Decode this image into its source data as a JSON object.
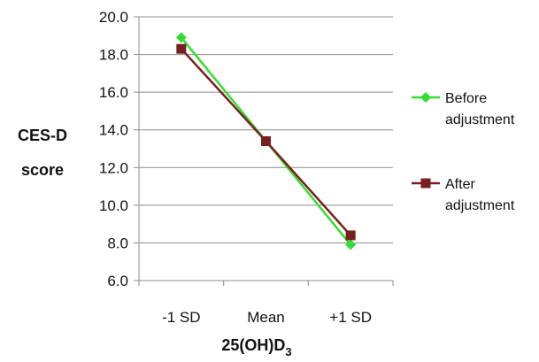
{
  "chart_data": {
    "type": "line",
    "categories": [
      "-1 SD",
      "Mean",
      "+1 SD"
    ],
    "series": [
      {
        "name": "Before adjustment",
        "legend_lines": [
          "Before",
          "adjustment"
        ],
        "values": [
          18.9,
          13.4,
          7.9
        ],
        "color": "#33dd33",
        "marker": "diamond"
      },
      {
        "name": "After adjustment",
        "legend_lines": [
          "After",
          "adjustment"
        ],
        "values": [
          18.3,
          13.4,
          8.4
        ],
        "color": "#7a1f1f",
        "marker": "square"
      }
    ],
    "xlabel": "25(OH)D",
    "xlabel_subscript": "3",
    "ylabel_lines": [
      "CES-D",
      "score"
    ],
    "ylim": [
      6.0,
      20.0
    ],
    "yticks": [
      6.0,
      8.0,
      10.0,
      12.0,
      14.0,
      16.0,
      18.0,
      20.0
    ],
    "ytick_decimals": 1,
    "grid": true,
    "legend": "right"
  }
}
